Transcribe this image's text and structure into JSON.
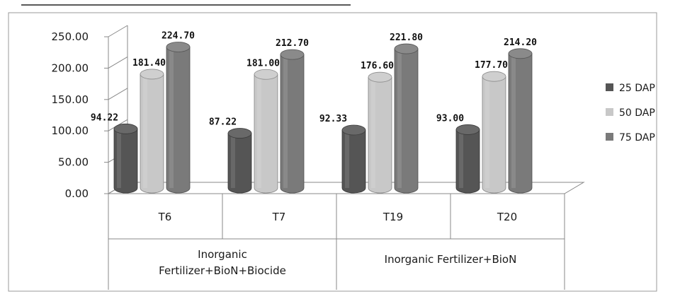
{
  "chart_data": {
    "type": "bar",
    "categories": [
      "T6",
      "T7",
      "T19",
      "T20"
    ],
    "groups": [
      {
        "label": "Inorganic Fertilizer+BioN+Biocide",
        "categories": [
          "T6",
          "T7"
        ]
      },
      {
        "label": "Inorganic Fertilizer+BioN",
        "categories": [
          "T19",
          "T20"
        ]
      }
    ],
    "series": [
      {
        "name": "25 DAP",
        "values": [
          94.22,
          87.22,
          92.33,
          93.0
        ],
        "labels": [
          "94.22",
          "87.22",
          "92.33",
          "93.00"
        ],
        "color": "#555555"
      },
      {
        "name": "50 DAP",
        "values": [
          181.4,
          181.0,
          176.6,
          177.7
        ],
        "labels": [
          "181.40",
          "181.00",
          "176.60",
          "177.70"
        ],
        "color": "#c8c8c8"
      },
      {
        "name": "75 DAP",
        "values": [
          224.7,
          212.7,
          221.8,
          214.2
        ],
        "labels": [
          "224.70",
          "212.70",
          "221.80",
          "214.20"
        ],
        "color": "#7a7a7a"
      }
    ],
    "yticks": [
      "0.00",
      "50.00",
      "100.00",
      "150.00",
      "200.00",
      "250.00"
    ],
    "ylim": [
      0,
      250
    ],
    "legend_position": "right",
    "grid": false,
    "three_d": true
  }
}
